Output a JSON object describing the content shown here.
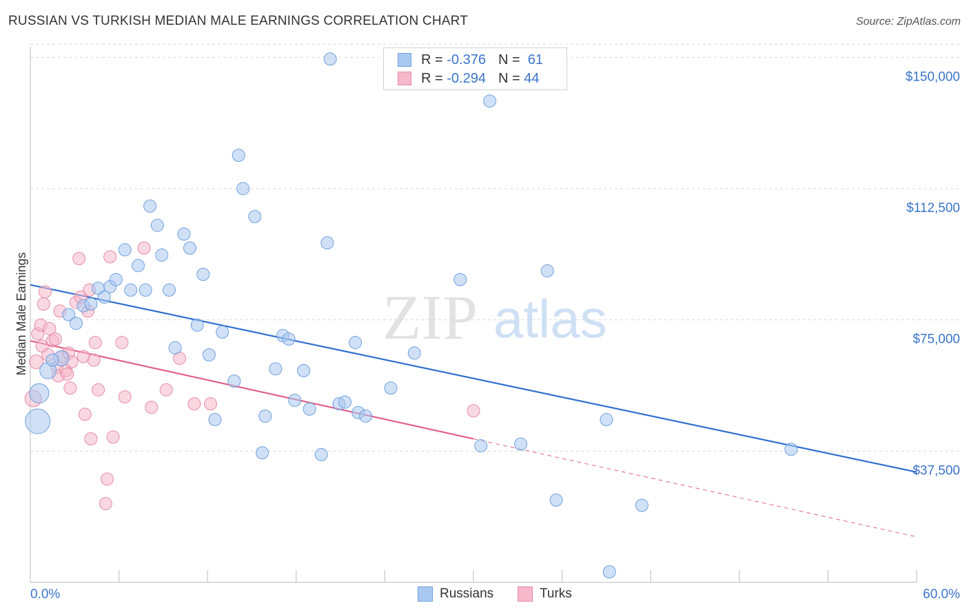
{
  "title": "RUSSIAN VS TURKISH MEDIAN MALE EARNINGS CORRELATION CHART",
  "source": "Source: ZipAtlas.com",
  "watermark": {
    "zip": "ZIP",
    "atlas": "atlas"
  },
  "legend": {
    "rows": [
      {
        "r_label": "R =",
        "r_value": "-0.376",
        "n_label": "N =",
        "n_value": "61",
        "color": "#a9c8f0"
      },
      {
        "r_label": "R =",
        "r_value": "-0.294",
        "n_label": "N =",
        "n_value": "44",
        "color": "#f6b8cb"
      }
    ]
  },
  "bottom_legend": {
    "russians": "Russians",
    "turks": "Turks"
  },
  "colors": {
    "russians_fill": "#a9c8f0",
    "russians_stroke": "#6f9fdc",
    "russians_line": "#2f6fcf",
    "turks_fill": "#f6b8cb",
    "turks_stroke": "#e48aa6",
    "turks_line": "#e0608a",
    "tick_label": "#3a74c9",
    "grid": "#d8d8d8"
  },
  "chart_data": {
    "type": "scatter",
    "title": "RUSSIAN VS TURKISH MEDIAN MALE EARNINGS CORRELATION CHART",
    "xlabel": "",
    "ylabel": "Median Male Earnings",
    "xlim": [
      0,
      60
    ],
    "ylim": [
      0,
      153000
    ],
    "x_tick_labels": [
      "0.0%",
      "60.0%"
    ],
    "y_ticks": [
      37500,
      75000,
      112500,
      150000
    ],
    "y_tick_labels": [
      "$37,500",
      "$75,000",
      "$112,500",
      "$150,000"
    ],
    "grid": true,
    "legend_position": "top-center",
    "series": [
      {
        "name": "Russians",
        "r": -0.376,
        "n": 61,
        "trend": {
          "x": [
            0,
            60
          ],
          "y": [
            85000,
            31500
          ],
          "dashed_extension": false
        },
        "points": [
          {
            "x": 0.5,
            "y": 46000,
            "s": 18
          },
          {
            "x": 0.6,
            "y": 54000,
            "s": 14
          },
          {
            "x": 1.2,
            "y": 60500,
            "s": 12
          },
          {
            "x": 2.1,
            "y": 64000,
            "s": 11
          },
          {
            "x": 2.6,
            "y": 76500,
            "s": 9
          },
          {
            "x": 3.1,
            "y": 74000,
            "s": 9
          },
          {
            "x": 3.6,
            "y": 79000,
            "s": 9
          },
          {
            "x": 4.1,
            "y": 79500,
            "s": 9
          },
          {
            "x": 4.6,
            "y": 84000,
            "s": 9
          },
          {
            "x": 5.0,
            "y": 81500,
            "s": 9
          },
          {
            "x": 5.4,
            "y": 84500,
            "s": 9
          },
          {
            "x": 5.8,
            "y": 86500,
            "s": 9
          },
          {
            "x": 6.4,
            "y": 95000,
            "s": 9
          },
          {
            "x": 6.8,
            "y": 83500,
            "s": 9
          },
          {
            "x": 7.3,
            "y": 90500,
            "s": 9
          },
          {
            "x": 7.8,
            "y": 83500,
            "s": 9
          },
          {
            "x": 8.1,
            "y": 107500,
            "s": 9
          },
          {
            "x": 8.6,
            "y": 102000,
            "s": 9
          },
          {
            "x": 8.9,
            "y": 93500,
            "s": 9
          },
          {
            "x": 9.4,
            "y": 83500,
            "s": 9
          },
          {
            "x": 9.8,
            "y": 67000,
            "s": 9
          },
          {
            "x": 10.4,
            "y": 99500,
            "s": 9
          },
          {
            "x": 10.8,
            "y": 95500,
            "s": 9
          },
          {
            "x": 11.3,
            "y": 73500,
            "s": 9
          },
          {
            "x": 11.7,
            "y": 88000,
            "s": 9
          },
          {
            "x": 12.1,
            "y": 65000,
            "s": 9
          },
          {
            "x": 12.5,
            "y": 46500,
            "s": 9
          },
          {
            "x": 13.0,
            "y": 71500,
            "s": 9
          },
          {
            "x": 13.8,
            "y": 57500,
            "s": 9
          },
          {
            "x": 14.1,
            "y": 122000,
            "s": 9
          },
          {
            "x": 14.4,
            "y": 112500,
            "s": 9
          },
          {
            "x": 15.2,
            "y": 104500,
            "s": 9
          },
          {
            "x": 15.7,
            "y": 37000,
            "s": 9
          },
          {
            "x": 15.9,
            "y": 47500,
            "s": 9
          },
          {
            "x": 16.6,
            "y": 61000,
            "s": 9
          },
          {
            "x": 17.1,
            "y": 70500,
            "s": 9
          },
          {
            "x": 17.5,
            "y": 69500,
            "s": 9
          },
          {
            "x": 17.9,
            "y": 52000,
            "s": 9
          },
          {
            "x": 18.5,
            "y": 60500,
            "s": 9
          },
          {
            "x": 18.9,
            "y": 49500,
            "s": 9
          },
          {
            "x": 19.7,
            "y": 36500,
            "s": 9
          },
          {
            "x": 20.1,
            "y": 97000,
            "s": 9
          },
          {
            "x": 20.3,
            "y": 149500,
            "s": 9
          },
          {
            "x": 20.9,
            "y": 51000,
            "s": 9
          },
          {
            "x": 21.3,
            "y": 51500,
            "s": 9
          },
          {
            "x": 22.0,
            "y": 68500,
            "s": 9
          },
          {
            "x": 22.2,
            "y": 48500,
            "s": 9
          },
          {
            "x": 22.7,
            "y": 47500,
            "s": 9
          },
          {
            "x": 24.4,
            "y": 55500,
            "s": 9
          },
          {
            "x": 26.0,
            "y": 65500,
            "s": 9
          },
          {
            "x": 29.1,
            "y": 86500,
            "s": 9
          },
          {
            "x": 30.5,
            "y": 39000,
            "s": 9
          },
          {
            "x": 31.1,
            "y": 137500,
            "s": 9
          },
          {
            "x": 33.2,
            "y": 39500,
            "s": 9
          },
          {
            "x": 35.0,
            "y": 89000,
            "s": 9
          },
          {
            "x": 35.6,
            "y": 23500,
            "s": 9
          },
          {
            "x": 39.0,
            "y": 46500,
            "s": 9
          },
          {
            "x": 39.2,
            "y": 3000,
            "s": 9
          },
          {
            "x": 41.4,
            "y": 22000,
            "s": 9
          },
          {
            "x": 51.5,
            "y": 38000,
            "s": 9
          },
          {
            "x": 1.5,
            "y": 63500,
            "s": 9
          }
        ]
      },
      {
        "name": "Turks",
        "r": -0.294,
        "n": 44,
        "trend": {
          "x": [
            0,
            30
          ],
          "y": [
            69000,
            41000
          ],
          "dashed_to": {
            "x": 60,
            "y": 13000
          }
        },
        "points": [
          {
            "x": 0.2,
            "y": 52500,
            "s": 12
          },
          {
            "x": 0.4,
            "y": 63000,
            "s": 10
          },
          {
            "x": 0.5,
            "y": 71000,
            "s": 9
          },
          {
            "x": 0.7,
            "y": 73500,
            "s": 9
          },
          {
            "x": 0.8,
            "y": 67500,
            "s": 9
          },
          {
            "x": 0.9,
            "y": 79500,
            "s": 9
          },
          {
            "x": 1.0,
            "y": 83000,
            "s": 9
          },
          {
            "x": 1.2,
            "y": 65000,
            "s": 9
          },
          {
            "x": 1.3,
            "y": 72500,
            "s": 9
          },
          {
            "x": 1.5,
            "y": 69000,
            "s": 9
          },
          {
            "x": 1.7,
            "y": 69500,
            "s": 9
          },
          {
            "x": 1.8,
            "y": 61500,
            "s": 9
          },
          {
            "x": 1.9,
            "y": 59000,
            "s": 9
          },
          {
            "x": 2.0,
            "y": 77500,
            "s": 9
          },
          {
            "x": 2.2,
            "y": 64500,
            "s": 9
          },
          {
            "x": 2.4,
            "y": 60500,
            "s": 9
          },
          {
            "x": 2.5,
            "y": 59500,
            "s": 9
          },
          {
            "x": 2.6,
            "y": 65500,
            "s": 9
          },
          {
            "x": 2.8,
            "y": 63000,
            "s": 9
          },
          {
            "x": 3.1,
            "y": 80000,
            "s": 9
          },
          {
            "x": 3.3,
            "y": 92500,
            "s": 9
          },
          {
            "x": 3.4,
            "y": 81500,
            "s": 9
          },
          {
            "x": 3.6,
            "y": 64500,
            "s": 9
          },
          {
            "x": 3.7,
            "y": 48000,
            "s": 9
          },
          {
            "x": 3.9,
            "y": 77500,
            "s": 9
          },
          {
            "x": 4.0,
            "y": 83500,
            "s": 9
          },
          {
            "x": 4.1,
            "y": 41000,
            "s": 9
          },
          {
            "x": 4.3,
            "y": 63500,
            "s": 9
          },
          {
            "x": 4.4,
            "y": 68500,
            "s": 9
          },
          {
            "x": 4.6,
            "y": 55000,
            "s": 9
          },
          {
            "x": 5.2,
            "y": 29500,
            "s": 9
          },
          {
            "x": 5.1,
            "y": 22500,
            "s": 9
          },
          {
            "x": 5.4,
            "y": 93000,
            "s": 9
          },
          {
            "x": 5.6,
            "y": 41500,
            "s": 9
          },
          {
            "x": 6.2,
            "y": 68500,
            "s": 9
          },
          {
            "x": 6.4,
            "y": 53000,
            "s": 9
          },
          {
            "x": 7.7,
            "y": 95500,
            "s": 9
          },
          {
            "x": 8.2,
            "y": 50000,
            "s": 9
          },
          {
            "x": 9.2,
            "y": 55000,
            "s": 9
          },
          {
            "x": 10.1,
            "y": 64000,
            "s": 9
          },
          {
            "x": 11.1,
            "y": 51000,
            "s": 9
          },
          {
            "x": 12.2,
            "y": 51000,
            "s": 9
          },
          {
            "x": 30.0,
            "y": 49000,
            "s": 9
          },
          {
            "x": 2.7,
            "y": 55500,
            "s": 9
          }
        ]
      }
    ]
  }
}
